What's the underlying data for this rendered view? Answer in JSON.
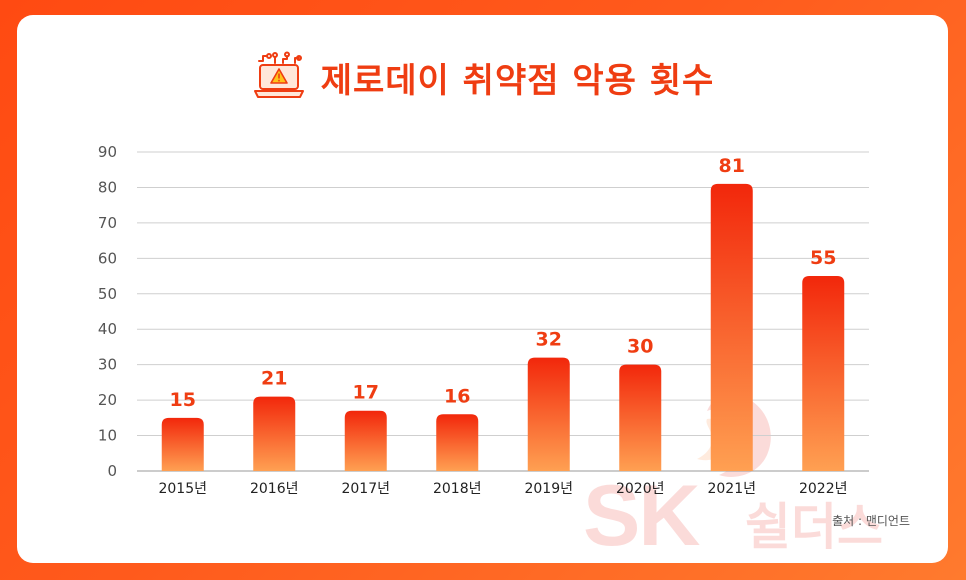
{
  "title": "제로데이 취약점 악용 횟수",
  "source": "출처 : 맨디언트",
  "watermark": {
    "sk": "SK",
    "brand": "쉴더스"
  },
  "colors": {
    "accent": "#ef3d12",
    "bar_top": "#f2270b",
    "bar_bottom": "#ffa052",
    "label": "#ef3d12"
  },
  "chart_data": {
    "type": "bar",
    "title": "제로데이 취약점 악용 횟수",
    "categories": [
      "2015년",
      "2016년",
      "2017년",
      "2018년",
      "2019년",
      "2020년",
      "2021년",
      "2022년"
    ],
    "values": [
      15,
      21,
      17,
      16,
      32,
      30,
      81,
      55
    ],
    "data_labels": [
      "15",
      "21",
      "17",
      "16",
      "32",
      "30",
      "81",
      "55"
    ],
    "yticks": [
      "0",
      "10",
      "20",
      "30",
      "40",
      "50",
      "60",
      "70",
      "80",
      "90"
    ],
    "ylim": [
      0,
      90
    ],
    "xlabel": "",
    "ylabel": "",
    "grid": true
  }
}
